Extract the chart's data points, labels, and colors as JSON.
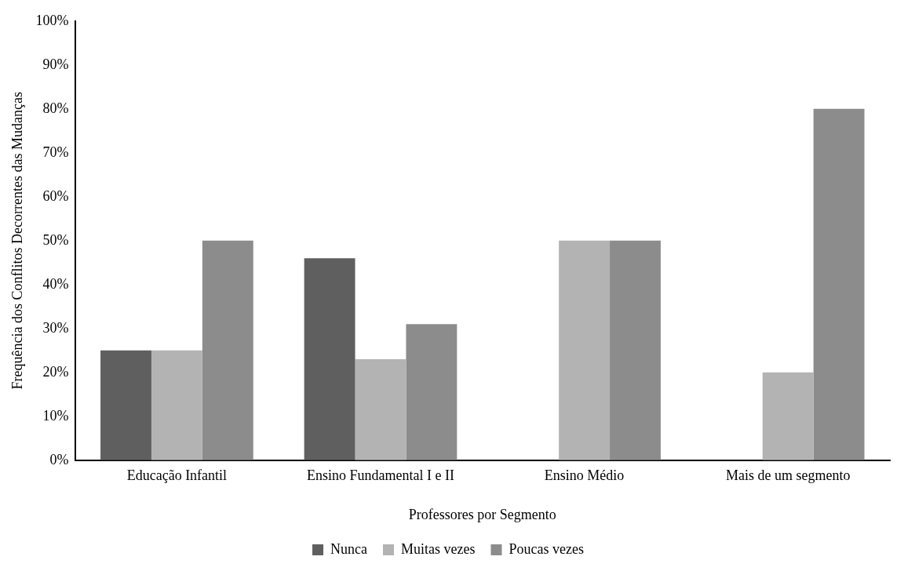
{
  "chart_data": {
    "type": "bar",
    "xlabel": "Professores por Segmento",
    "ylabel": "Frequência dos Conflitos Decorrentes das Mudanças",
    "categories": [
      "Educação Infantil",
      "Ensino Fundamental I e II",
      "Ensino Médio",
      "Mais de um segmento"
    ],
    "series": [
      {
        "name": "Nunca",
        "color": "#5f5f5f",
        "values": [
          25,
          46,
          0,
          0
        ]
      },
      {
        "name": "Muitas vezes",
        "color": "#b3b3b3",
        "values": [
          25,
          23,
          50,
          20
        ]
      },
      {
        "name": "Poucas vezes",
        "color": "#8c8c8c",
        "values": [
          50,
          31,
          50,
          80
        ]
      }
    ],
    "ylim": [
      0,
      100
    ],
    "yticks": [
      {
        "value": 0,
        "label": "0%"
      },
      {
        "value": 10,
        "label": "10%"
      },
      {
        "value": 20,
        "label": "20%"
      },
      {
        "value": 30,
        "label": "30%"
      },
      {
        "value": 40,
        "label": "40%"
      },
      {
        "value": 50,
        "label": "50%"
      },
      {
        "value": 60,
        "label": "60%"
      },
      {
        "value": 70,
        "label": "70%"
      },
      {
        "value": 80,
        "label": "80%"
      },
      {
        "value": 90,
        "label": "90%"
      },
      {
        "value": 100,
        "label": "100%"
      }
    ],
    "grid": false,
    "legend": "bottom"
  }
}
